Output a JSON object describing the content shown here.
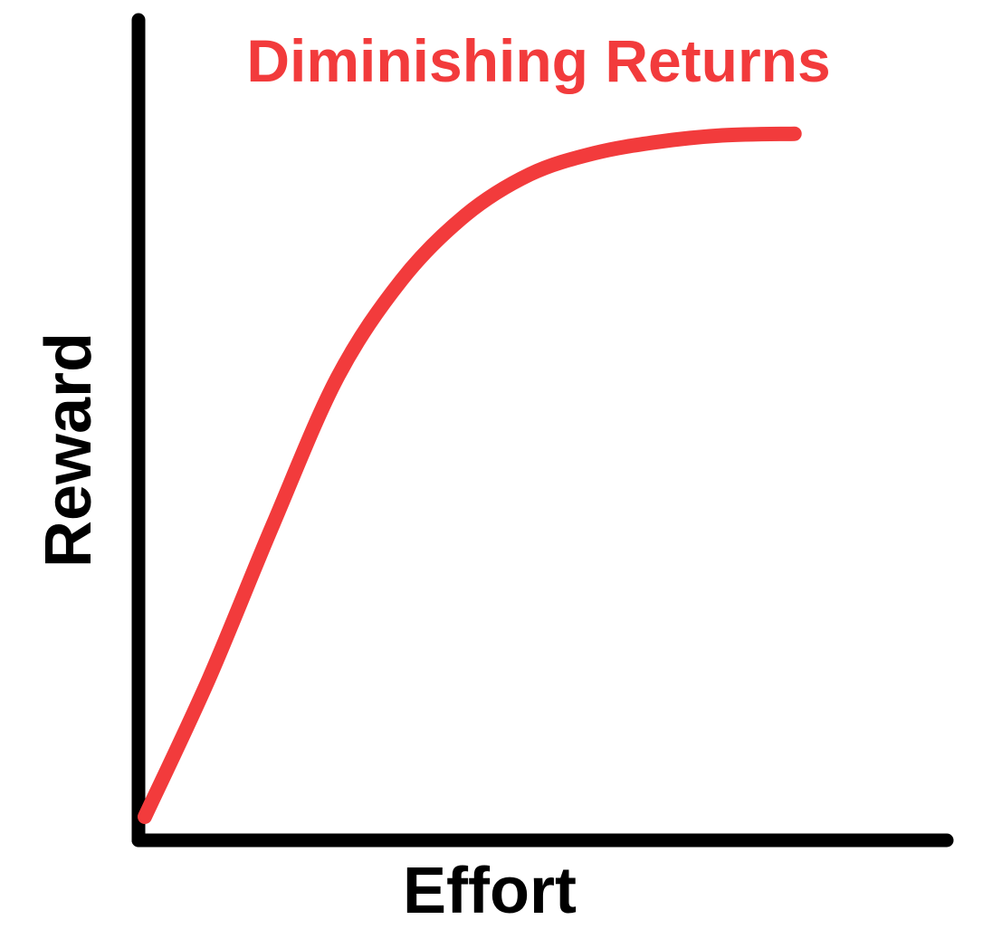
{
  "chart_data": {
    "type": "line",
    "title": "Diminishing Returns",
    "xlabel": "Effort",
    "ylabel": "Reward",
    "xlim": [
      0,
      100
    ],
    "ylim": [
      0,
      100
    ],
    "grid": false,
    "series": [
      {
        "values": [
          {
            "x": 0,
            "y": 2
          },
          {
            "x": 8,
            "y": 19
          },
          {
            "x": 16,
            "y": 38
          },
          {
            "x": 24,
            "y": 56
          },
          {
            "x": 32,
            "y": 68
          },
          {
            "x": 40,
            "y": 76
          },
          {
            "x": 48,
            "y": 81
          },
          {
            "x": 56,
            "y": 83.6
          },
          {
            "x": 64,
            "y": 85
          },
          {
            "x": 72,
            "y": 85.8
          },
          {
            "x": 81,
            "y": 86
          }
        ]
      }
    ]
  },
  "colors": {
    "curve": "#f23b3c",
    "title": "#f23b3c",
    "axes": "#000000",
    "background": "#ffffff"
  }
}
